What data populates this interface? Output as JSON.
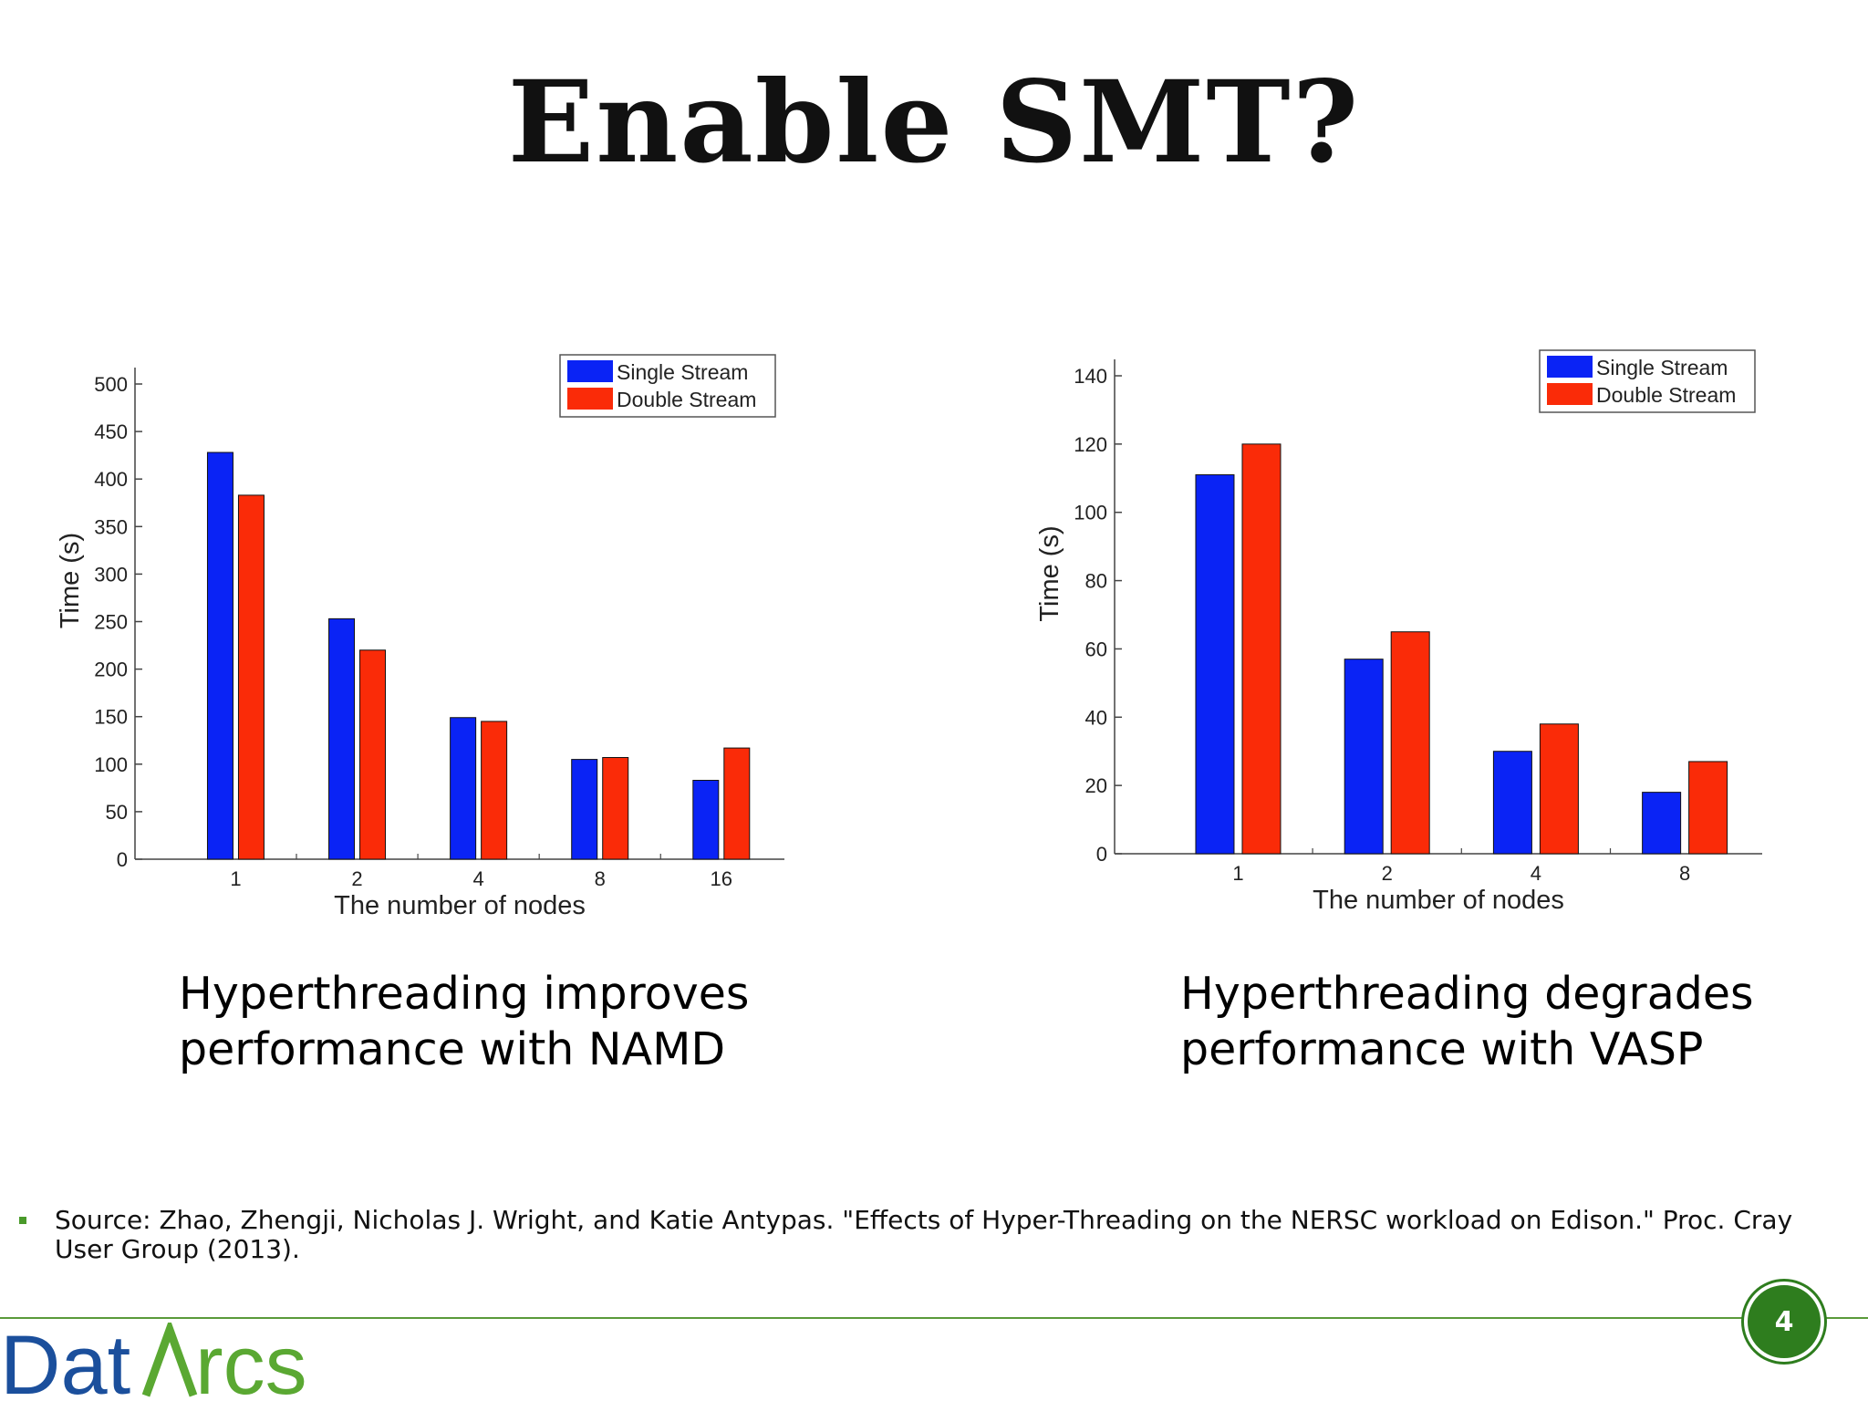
{
  "slide": {
    "title": "Enable SMT?",
    "captions": {
      "left": "Hyperthreading improves performance with NAMD",
      "right": "Hyperthreading degrades performance with VASP"
    },
    "source": "Source: Zhao, Zhengji, Nicholas J. Wright, and Katie Antypas. \"Effects of Hyper-Threading on the NERSC workload on Edison.\" Proc. Cray User Group (2013).",
    "page_number": "4",
    "logo": {
      "text": "DatArcs",
      "color_dark": "#1b4f9c",
      "color_green": "#5aa832"
    }
  },
  "colors": {
    "single": "#0a23f5",
    "double": "#fa2b08",
    "accent": "#2e7d1e"
  },
  "chart_data": [
    {
      "type": "bar",
      "categories": [
        "1",
        "2",
        "4",
        "8",
        "16"
      ],
      "series": [
        {
          "name": "Single Stream",
          "values": [
            428,
            253,
            149,
            105,
            83
          ]
        },
        {
          "name": "Double Stream",
          "values": [
            383,
            220,
            145,
            107,
            117
          ]
        }
      ],
      "xlabel": "The number of nodes",
      "ylabel": "Time (s)",
      "ylim": [
        0,
        500
      ],
      "yticks": [
        0,
        50,
        100,
        150,
        200,
        250,
        300,
        350,
        400,
        450,
        500
      ],
      "legend_position": "top-right",
      "grid": false
    },
    {
      "type": "bar",
      "categories": [
        "1",
        "2",
        "4",
        "8"
      ],
      "series": [
        {
          "name": "Single Stream",
          "values": [
            111,
            57,
            30,
            18
          ]
        },
        {
          "name": "Double Stream",
          "values": [
            120,
            65,
            38,
            27
          ]
        }
      ],
      "xlabel": "The number of nodes",
      "ylabel": "Time (s)",
      "ylim": [
        0,
        140
      ],
      "yticks": [
        0,
        20,
        40,
        60,
        80,
        100,
        120,
        140
      ],
      "legend_position": "top-right",
      "grid": false
    }
  ]
}
